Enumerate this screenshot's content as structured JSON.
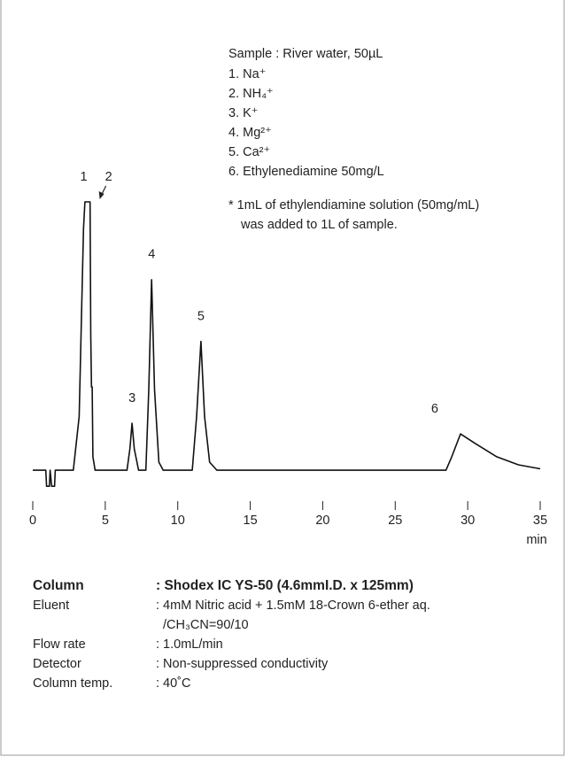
{
  "chart_data": {
    "type": "line",
    "x": [
      0,
      0.9,
      0.95,
      1.15,
      1.2,
      1.3,
      1.5,
      1.55,
      2.8,
      3.2,
      3.5,
      3.6,
      3.95,
      4.0,
      4.05,
      4.1,
      4.15,
      4.3,
      6.5,
      6.7,
      6.85,
      7.0,
      7.3,
      7.8,
      8.0,
      8.2,
      8.4,
      8.7,
      9.0,
      11.0,
      11.3,
      11.6,
      11.85,
      12.2,
      12.7,
      28.5,
      28.9,
      29.5,
      30.5,
      32,
      33.5,
      35
    ],
    "values": [
      0,
      0,
      -6,
      -6,
      0,
      -6,
      -6,
      0,
      0,
      20,
      90,
      100,
      100,
      50,
      31,
      31,
      5,
      0,
      0,
      8,
      17.5,
      8,
      0,
      0,
      30,
      71,
      30,
      3,
      0,
      0,
      20,
      48,
      20,
      3,
      0,
      0,
      5,
      13.5,
      10,
      5,
      2,
      0.5
    ],
    "color": "#111",
    "xlim": [
      0,
      35
    ],
    "xticks": [
      0,
      5,
      10,
      15,
      20,
      25,
      30,
      35
    ],
    "xlabel": "min",
    "ylim": [
      -8,
      100
    ],
    "peaks": [
      {
        "label": "1",
        "x": 3.7
      },
      {
        "label": "2",
        "x": 4.07
      },
      {
        "label": "3",
        "x": 6.85
      },
      {
        "label": "4",
        "x": 8.2
      },
      {
        "label": "5",
        "x": 11.6
      },
      {
        "label": "6",
        "x": 29.5
      }
    ]
  },
  "sample": {
    "title": "Sample : River water, 50µL",
    "items": [
      "1. Na⁺",
      "2. NH₄⁺",
      "3. K⁺",
      "4. Mg²⁺",
      "5. Ca²⁺",
      "6. Ethylenediamine 50mg/L"
    ],
    "note": [
      "* 1mL of ethylendiamine solution (50mg/mL)",
      "was added to 1L of sample."
    ]
  },
  "conditions": [
    {
      "label": "Column",
      "value": [
        ": Shodex IC YS-50 (4.6mmI.D. x 125mm)"
      ]
    },
    {
      "label": "Eluent",
      "value": [
        ": 4mM Nitric acid + 1.5mM 18-Crown 6-ether aq.",
        "/CH₃CN=90/10"
      ]
    },
    {
      "label": "Flow rate",
      "value": [
        ": 1.0mL/min"
      ]
    },
    {
      "label": "Detector",
      "value": [
        ": Non-suppressed conductivity"
      ]
    },
    {
      "label": "Column temp.",
      "value": [
        ": 40˚C"
      ]
    }
  ]
}
